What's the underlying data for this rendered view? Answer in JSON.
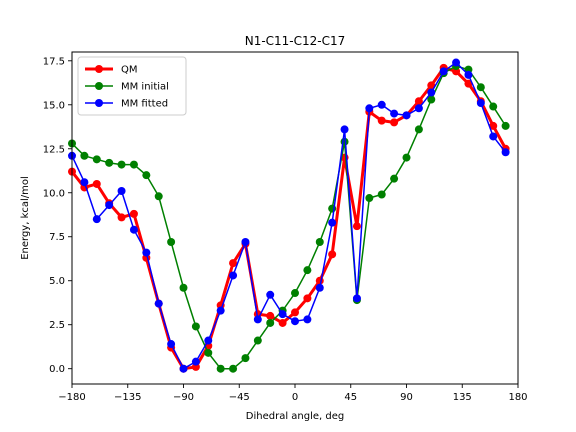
{
  "chart_data": {
    "type": "line",
    "title": "N1-C11-C12-C17",
    "xlabel": "Dihedral angle, deg",
    "ylabel": "Energy, kcal/mol",
    "xlim": [
      -180,
      180
    ],
    "ylim": [
      -0.87,
      18.0
    ],
    "xticks": [
      -180,
      -135,
      -90,
      -45,
      0,
      45,
      90,
      135,
      180
    ],
    "xtick_labels": [
      "−180",
      "−135",
      "−90",
      "−45",
      "0",
      "45",
      "90",
      "135",
      "180"
    ],
    "yticks": [
      0.0,
      2.5,
      5.0,
      7.5,
      10.0,
      12.5,
      15.0,
      17.5
    ],
    "ytick_labels": [
      "0.0",
      "2.5",
      "5.0",
      "7.5",
      "10.0",
      "12.5",
      "15.0",
      "17.5"
    ],
    "grid": false,
    "legend_position": "top-left",
    "x": [
      -180,
      -170,
      -160,
      -150,
      -140,
      -130,
      -120,
      -110,
      -100,
      -90,
      -80,
      -70,
      -60,
      -50,
      -40,
      -30,
      -20,
      -10,
      0,
      10,
      20,
      30,
      40,
      50,
      60,
      70,
      80,
      90,
      100,
      110,
      120,
      130,
      140,
      150,
      160,
      170
    ],
    "series": [
      {
        "name": "QM",
        "color": "#ff0000",
        "values": [
          11.2,
          10.3,
          10.5,
          9.4,
          8.6,
          8.8,
          6.3,
          3.7,
          1.2,
          0.0,
          0.1,
          1.3,
          3.6,
          6.0,
          7.1,
          3.1,
          3.0,
          2.6,
          3.2,
          4.0,
          5.0,
          6.5,
          12.0,
          8.1,
          14.6,
          14.1,
          14.0,
          14.4,
          15.2,
          16.1,
          17.1,
          16.9,
          16.2,
          15.2,
          13.8,
          12.5
        ]
      },
      {
        "name": "MM initial",
        "color": "#008000",
        "values": [
          12.8,
          12.1,
          11.9,
          11.7,
          11.6,
          11.6,
          11.0,
          9.8,
          7.2,
          4.6,
          2.4,
          0.9,
          0.0,
          0.0,
          0.6,
          1.6,
          2.6,
          3.3,
          4.3,
          5.6,
          7.2,
          9.1,
          12.9,
          3.9,
          9.7,
          9.9,
          10.8,
          12.0,
          13.6,
          15.3,
          16.8,
          17.2,
          17.0,
          16.0,
          14.9,
          13.8
        ]
      },
      {
        "name": "MM fitted",
        "color": "#0000ff",
        "values": [
          12.1,
          10.6,
          8.5,
          9.3,
          10.1,
          7.9,
          6.6,
          3.7,
          1.4,
          0.0,
          0.4,
          1.6,
          3.3,
          5.3,
          7.2,
          2.8,
          4.2,
          3.1,
          2.7,
          2.8,
          4.6,
          8.3,
          13.6,
          4.0,
          14.8,
          15.0,
          14.5,
          14.4,
          14.8,
          15.7,
          16.9,
          17.4,
          16.7,
          15.1,
          13.2,
          12.3
        ]
      }
    ]
  }
}
